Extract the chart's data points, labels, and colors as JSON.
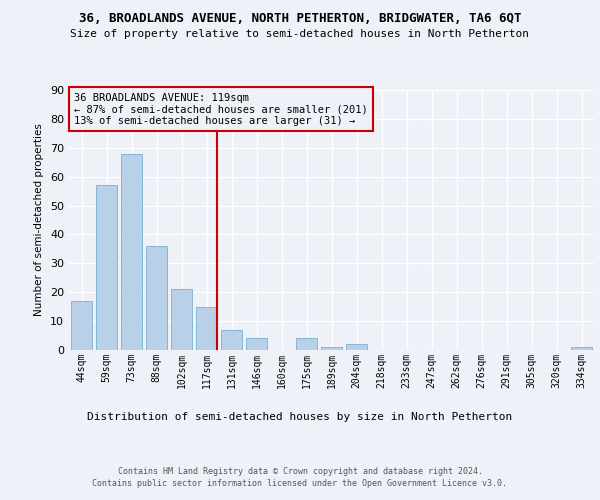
{
  "title1": "36, BROADLANDS AVENUE, NORTH PETHERTON, BRIDGWATER, TA6 6QT",
  "title2": "Size of property relative to semi-detached houses in North Petherton",
  "xlabel": "Distribution of semi-detached houses by size in North Petherton",
  "ylabel": "Number of semi-detached properties",
  "categories": [
    "44sqm",
    "59sqm",
    "73sqm",
    "88sqm",
    "102sqm",
    "117sqm",
    "131sqm",
    "146sqm",
    "160sqm",
    "175sqm",
    "189sqm",
    "204sqm",
    "218sqm",
    "233sqm",
    "247sqm",
    "262sqm",
    "276sqm",
    "291sqm",
    "305sqm",
    "320sqm",
    "334sqm"
  ],
  "values": [
    17,
    57,
    68,
    36,
    21,
    15,
    7,
    4,
    0,
    4,
    1,
    2,
    0,
    0,
    0,
    0,
    0,
    0,
    0,
    0,
    1
  ],
  "bar_color": "#b8d0e8",
  "bar_edge_color": "#7aafd4",
  "vline_color": "#cc0000",
  "annotation_line1": "36 BROADLANDS AVENUE: 119sqm",
  "annotation_line2": "← 87% of semi-detached houses are smaller (201)",
  "annotation_line3": "13% of semi-detached houses are larger (31) →",
  "annotation_box_color": "#cc0000",
  "ylim": [
    0,
    90
  ],
  "yticks": [
    0,
    10,
    20,
    30,
    40,
    50,
    60,
    70,
    80,
    90
  ],
  "footer1": "Contains HM Land Registry data © Crown copyright and database right 2024.",
  "footer2": "Contains public sector information licensed under the Open Government Licence v3.0.",
  "bg_color": "#eef2f8"
}
